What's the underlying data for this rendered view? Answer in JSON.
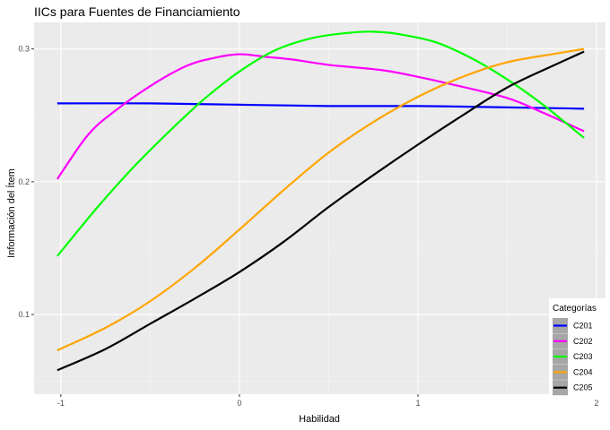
{
  "chart_data": {
    "type": "line",
    "title": "IICs para Fuentes de Financiamiento",
    "xlabel": "Habilidad",
    "ylabel": "Información del Ítem",
    "xlim": [
      -1.15,
      2.05
    ],
    "ylim": [
      0.04,
      0.32
    ],
    "xticks": [
      -1,
      0,
      1,
      2
    ],
    "xtick_labels": [
      "-1",
      "0",
      "1",
      "2"
    ],
    "yticks": [
      0.1,
      0.2,
      0.3
    ],
    "ytick_labels": [
      "0.1",
      "0.2",
      "0.3"
    ],
    "grid": true,
    "background": "#ebebeb",
    "legend": {
      "title": "Categorías",
      "placement": "bottom-right"
    },
    "series": [
      {
        "name": "C201",
        "color": "#0000ff",
        "x": [
          -1.02,
          -0.5,
          0.0,
          0.5,
          1.0,
          1.5,
          1.93
        ],
        "y": [
          0.259,
          0.259,
          0.258,
          0.257,
          0.257,
          0.256,
          0.255
        ]
      },
      {
        "name": "C202",
        "color": "#ff00ff",
        "x": [
          -1.02,
          -0.85,
          -0.7,
          -0.5,
          -0.3,
          -0.15,
          0.0,
          0.15,
          0.3,
          0.5,
          0.8,
          1.0,
          1.2,
          1.5,
          1.7,
          1.93
        ],
        "y": [
          0.202,
          0.235,
          0.253,
          0.272,
          0.287,
          0.293,
          0.296,
          0.294,
          0.292,
          0.288,
          0.284,
          0.279,
          0.273,
          0.263,
          0.252,
          0.238
        ]
      },
      {
        "name": "C203",
        "color": "#00ff00",
        "x": [
          -1.02,
          -0.8,
          -0.6,
          -0.4,
          -0.2,
          0.0,
          0.2,
          0.4,
          0.6,
          0.75,
          0.9,
          1.1,
          1.3,
          1.5,
          1.7,
          1.93
        ],
        "y": [
          0.144,
          0.18,
          0.21,
          0.237,
          0.262,
          0.283,
          0.299,
          0.308,
          0.312,
          0.313,
          0.311,
          0.305,
          0.293,
          0.277,
          0.258,
          0.233
        ]
      },
      {
        "name": "C204",
        "color": "#ffa500",
        "x": [
          -1.02,
          -0.75,
          -0.5,
          -0.25,
          0.0,
          0.25,
          0.5,
          0.75,
          1.0,
          1.25,
          1.5,
          1.75,
          1.93
        ],
        "y": [
          0.073,
          0.09,
          0.11,
          0.135,
          0.164,
          0.194,
          0.222,
          0.245,
          0.264,
          0.279,
          0.29,
          0.296,
          0.3
        ]
      },
      {
        "name": "C205",
        "color": "#000000",
        "x": [
          -1.02,
          -0.75,
          -0.5,
          -0.25,
          0.0,
          0.25,
          0.5,
          0.75,
          1.0,
          1.25,
          1.5,
          1.75,
          1.93
        ],
        "y": [
          0.058,
          0.074,
          0.093,
          0.112,
          0.132,
          0.155,
          0.181,
          0.205,
          0.228,
          0.25,
          0.271,
          0.287,
          0.298
        ]
      }
    ]
  }
}
